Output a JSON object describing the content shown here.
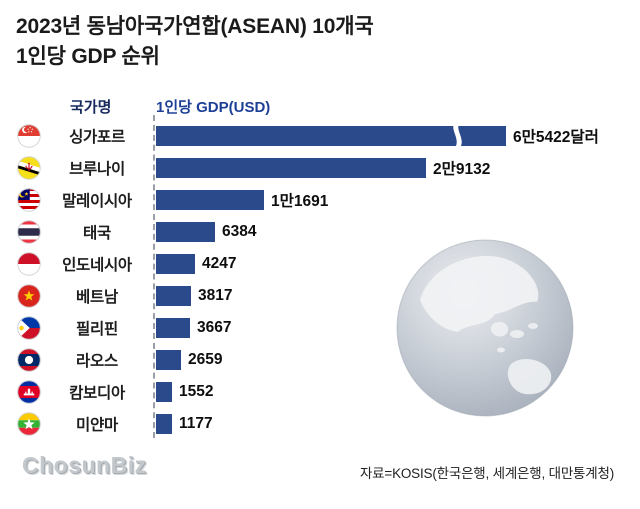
{
  "header": {
    "title_line1": "2023년 동남아국가연합(ASEAN) 10개국",
    "title_line2": "1인당 GDP 순위"
  },
  "columns": {
    "country": "국가명",
    "gdp": "1인당 GDP(USD)"
  },
  "chart_data": {
    "type": "bar",
    "orientation": "horizontal",
    "title": "2023년 동남아국가연합(ASEAN) 10개국 1인당 GDP 순위",
    "unit": "USD",
    "categories": [
      "싱가포르",
      "브루나이",
      "말레이시아",
      "태국",
      "인도네시아",
      "베트남",
      "필리핀",
      "라오스",
      "캄보디아",
      "미얀마"
    ],
    "values": [
      65422,
      29132,
      11691,
      6384,
      4247,
      3817,
      3667,
      2659,
      1552,
      1177
    ],
    "value_labels": [
      "6만5422달러",
      "2만9132",
      "1만1691",
      "6384",
      "4247",
      "3817",
      "3667",
      "2659",
      "1552",
      "1177"
    ],
    "flags": [
      "singapore",
      "brunei",
      "malaysia",
      "thailand",
      "indonesia",
      "vietnam",
      "philippines",
      "laos",
      "cambodia",
      "myanmar"
    ],
    "bar_color": "#2b4a8b",
    "truncated_bars": [
      "싱가포르"
    ],
    "xlim": [
      0,
      30000
    ],
    "legend": "none",
    "grid": false
  },
  "footer": {
    "logo": "ChosunBiz",
    "source": "자료=KOSIS(한국은행, 세계은행, 대만통계청)"
  }
}
